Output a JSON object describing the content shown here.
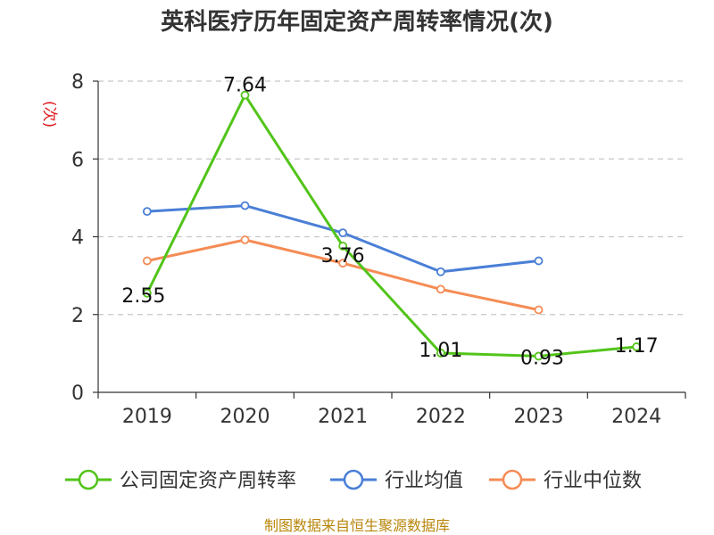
{
  "chart_data": {
    "type": "line",
    "title": "英科医疗历年固定资产周转率情况(次)",
    "ylabel": "(次)",
    "xlabel": "",
    "categories": [
      "2019",
      "2020",
      "2021",
      "2022",
      "2023",
      "2024"
    ],
    "ylim": [
      0,
      8
    ],
    "yticks": [
      0,
      2,
      4,
      6,
      8
    ],
    "grid": true,
    "legend_position": "bottom",
    "series": [
      {
        "name": "公司固定资产周转率",
        "color": "#52c41a",
        "values": [
          2.55,
          7.64,
          3.76,
          1.01,
          0.93,
          1.17
        ],
        "labels": [
          "2.55",
          "7.64",
          "3.76",
          "1.01",
          "0.93",
          "1.17"
        ]
      },
      {
        "name": "行业均值",
        "color": "#4a7fd6",
        "values": [
          4.65,
          4.8,
          4.1,
          3.1,
          3.38,
          null
        ]
      },
      {
        "name": "行业中位数",
        "color": "#f58c55",
        "values": [
          3.38,
          3.92,
          3.32,
          2.65,
          2.12,
          null
        ]
      }
    ]
  },
  "source": "制图数据来自恒生聚源数据库"
}
